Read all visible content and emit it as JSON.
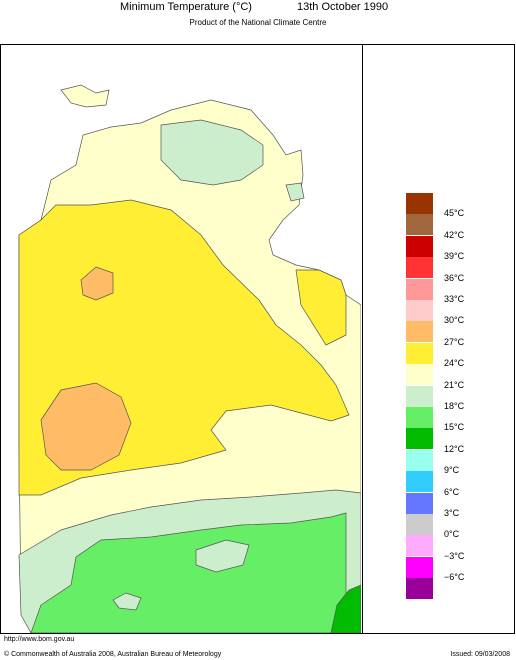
{
  "header": {
    "title": "Minimum Temperature (°C)",
    "date": "13th October 1990",
    "subtitle": "Product of the National Climate Centre"
  },
  "legend": {
    "items": [
      {
        "label": "45°C",
        "color": "#993300"
      },
      {
        "label": "42°C",
        "color": "#a0663c"
      },
      {
        "label": "39°C",
        "color": "#cc0000"
      },
      {
        "label": "36°C",
        "color": "#ff3333"
      },
      {
        "label": "33°C",
        "color": "#ff9999"
      },
      {
        "label": "30°C",
        "color": "#ffcccc"
      },
      {
        "label": "27°C",
        "color": "#ffbb66"
      },
      {
        "label": "24°C",
        "color": "#ffee33"
      },
      {
        "label": "21°C",
        "color": "#ffffcc"
      },
      {
        "label": "18°C",
        "color": "#cceecc"
      },
      {
        "label": "15°C",
        "color": "#66ee66"
      },
      {
        "label": "12°C",
        "color": "#00bb00"
      },
      {
        "label": "9°C",
        "color": "#99ffee"
      },
      {
        "label": "6°C",
        "color": "#33ccff"
      },
      {
        "label": "3°C",
        "color": "#6677ff"
      },
      {
        "label": "0°C",
        "color": "#cccccc"
      },
      {
        "label": "−3°C",
        "color": "#ffaaff"
      },
      {
        "label": "−6°C",
        "color": "#ff00ff"
      },
      {
        "label": "",
        "color": "#990099"
      }
    ]
  },
  "footer": {
    "url": "http://www.bom.gov.au",
    "copyright": "© Commonwealth of Australia 2008, Australian Bureau of Meteorology",
    "issued": "Issued: 09/03/2008"
  }
}
